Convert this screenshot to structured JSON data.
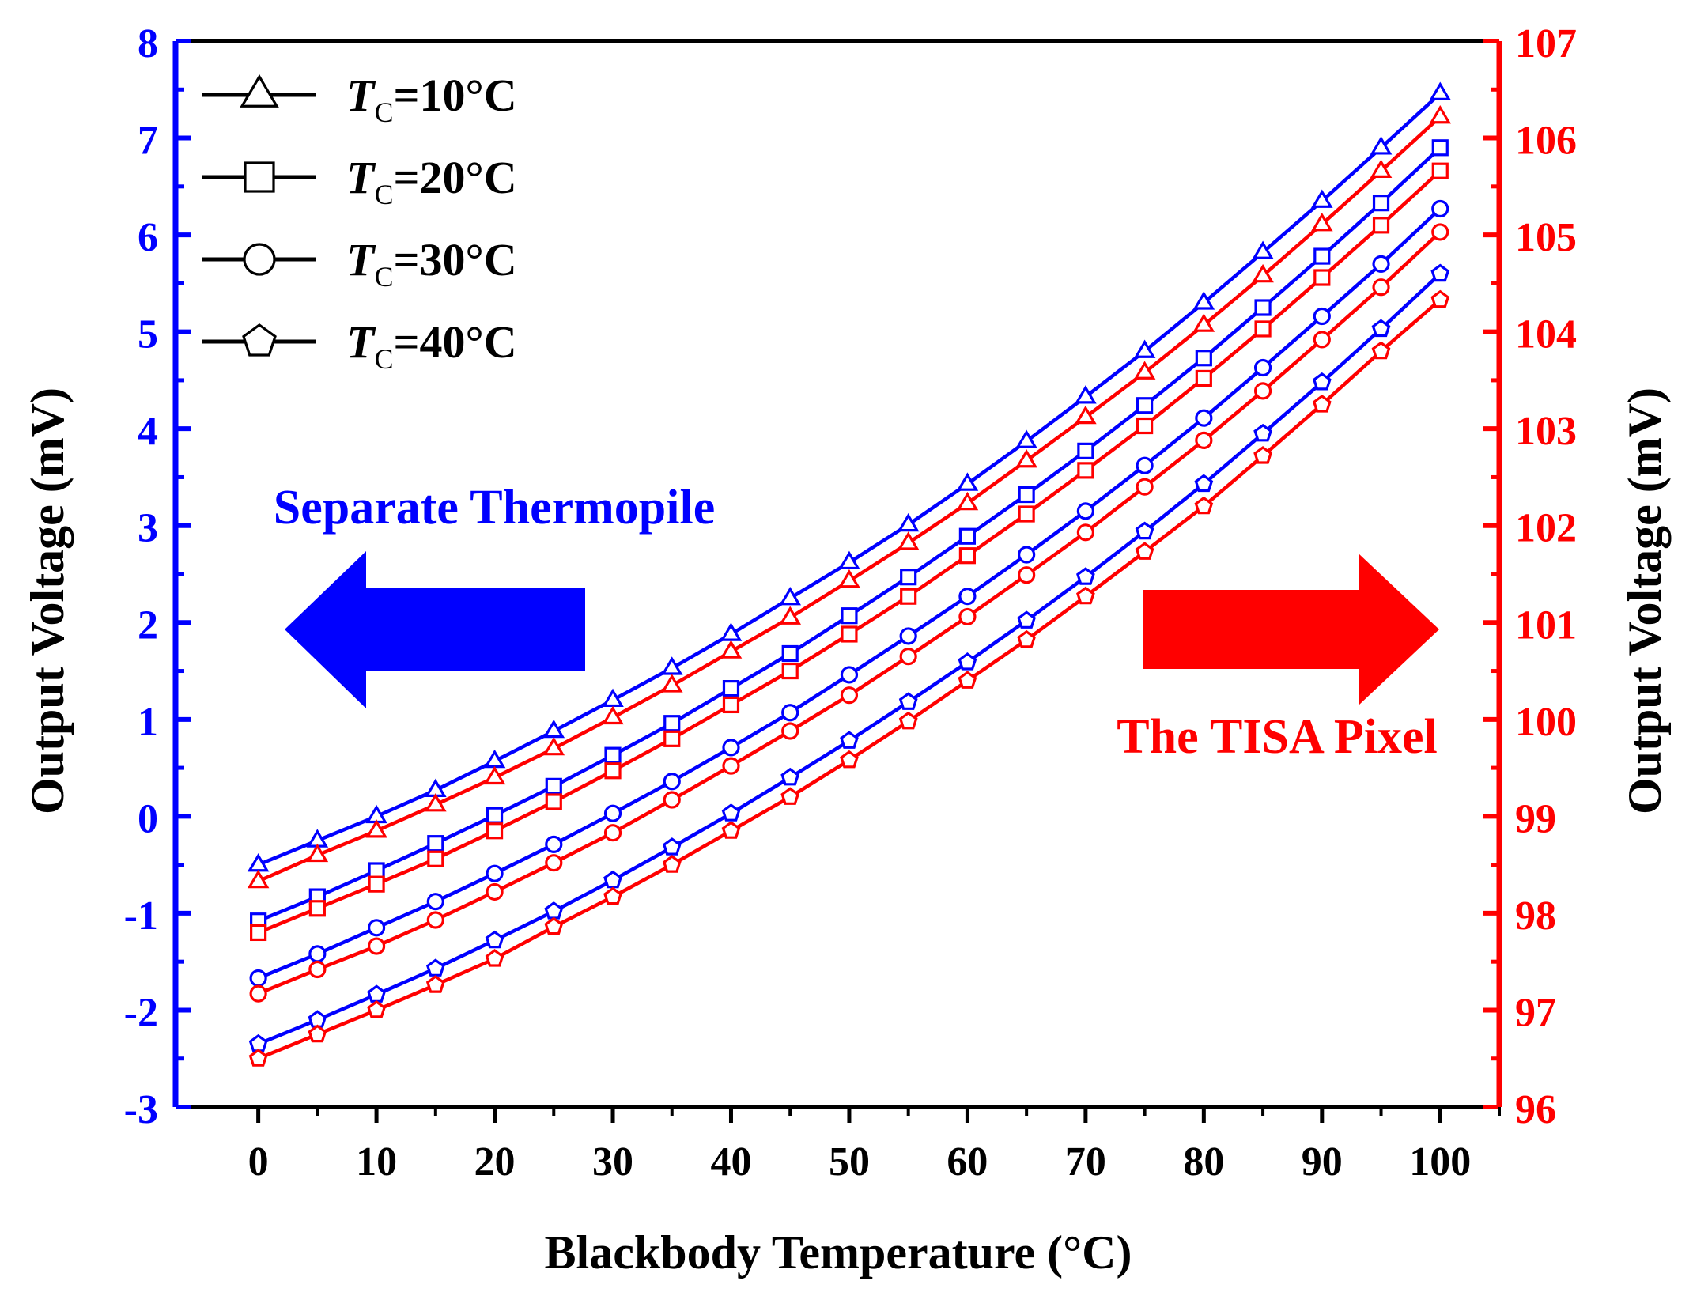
{
  "chart_data": {
    "type": "line",
    "xlabel": "Blackbody Temperature (°C)",
    "ylabel_left": "Output Voltage (mV)",
    "ylabel_right": "Output Voltage (mV)",
    "x": [
      0,
      5,
      10,
      15,
      20,
      25,
      30,
      35,
      40,
      45,
      50,
      55,
      60,
      65,
      70,
      75,
      80,
      85,
      90,
      95,
      100
    ],
    "xticks": [
      0,
      10,
      20,
      30,
      40,
      50,
      60,
      70,
      80,
      90,
      100
    ],
    "xlim": [
      -7,
      105
    ],
    "ylim_left": [
      -3,
      8
    ],
    "yticks_left": [
      -3,
      -2,
      -1,
      0,
      1,
      2,
      3,
      4,
      5,
      6,
      7,
      8
    ],
    "ylim_right": [
      96,
      107
    ],
    "yticks_right": [
      96,
      97,
      98,
      99,
      100,
      101,
      102,
      103,
      104,
      105,
      106,
      107
    ],
    "colors": {
      "left": "#0000ff",
      "right": "#ff0000",
      "frame": "#000000"
    },
    "legend": [
      {
        "italic": "T",
        "sub": "C",
        "text": "=10°C",
        "marker": "triangle"
      },
      {
        "italic": "T",
        "sub": "C",
        "text": "=20°C",
        "marker": "square"
      },
      {
        "italic": "T",
        "sub": "C",
        "text": "=30°C",
        "marker": "circle"
      },
      {
        "italic": "T",
        "sub": "C",
        "text": "=40°C",
        "marker": "pentagon"
      }
    ],
    "series_left": [
      {
        "name": "TC=10°C Separate Thermopile",
        "marker": "triangle",
        "values": [
          -0.5,
          -0.25,
          0.0,
          0.27,
          0.57,
          0.88,
          1.2,
          1.53,
          1.88,
          2.25,
          2.62,
          3.01,
          3.43,
          3.87,
          4.33,
          4.8,
          5.3,
          5.82,
          6.35,
          6.9,
          7.46
        ]
      },
      {
        "name": "TC=20°C Separate Thermopile",
        "marker": "square",
        "values": [
          -1.08,
          -0.83,
          -0.56,
          -0.28,
          0.01,
          0.31,
          0.63,
          0.96,
          1.32,
          1.68,
          2.07,
          2.47,
          2.89,
          3.32,
          3.77,
          4.24,
          4.73,
          5.25,
          5.78,
          6.33,
          6.9
        ]
      },
      {
        "name": "TC=30°C Separate Thermopile",
        "marker": "circle",
        "values": [
          -1.67,
          -1.42,
          -1.15,
          -0.88,
          -0.59,
          -0.29,
          0.03,
          0.36,
          0.71,
          1.07,
          1.46,
          1.86,
          2.27,
          2.7,
          3.15,
          3.62,
          4.11,
          4.63,
          5.16,
          5.7,
          6.27
        ]
      },
      {
        "name": "TC=40°C Separate Thermopile",
        "marker": "pentagon",
        "values": [
          -2.35,
          -2.1,
          -1.84,
          -1.57,
          -1.28,
          -0.98,
          -0.66,
          -0.32,
          0.03,
          0.4,
          0.78,
          1.18,
          1.59,
          2.02,
          2.47,
          2.94,
          3.43,
          3.95,
          4.48,
          5.03,
          5.6
        ]
      }
    ],
    "series_right": [
      {
        "name": "TC=10°C The TISA Pixel",
        "marker": "triangle",
        "values": [
          98.33,
          98.6,
          98.85,
          99.12,
          99.4,
          99.7,
          100.02,
          100.35,
          100.7,
          101.05,
          101.43,
          101.82,
          102.23,
          102.67,
          103.12,
          103.58,
          104.07,
          104.58,
          105.11,
          105.66,
          106.22
        ]
      },
      {
        "name": "TC=20°C The TISA Pixel",
        "marker": "square",
        "values": [
          97.8,
          98.05,
          98.3,
          98.56,
          98.85,
          99.15,
          99.47,
          99.8,
          100.15,
          100.5,
          100.88,
          101.27,
          101.69,
          102.12,
          102.57,
          103.03,
          103.52,
          104.03,
          104.56,
          105.1,
          105.66
        ]
      },
      {
        "name": "TC=30°C The TISA Pixel",
        "marker": "circle",
        "values": [
          97.17,
          97.42,
          97.66,
          97.93,
          98.22,
          98.52,
          98.83,
          99.17,
          99.52,
          99.88,
          100.25,
          100.65,
          101.06,
          101.49,
          101.93,
          102.4,
          102.88,
          103.39,
          103.92,
          104.46,
          105.03
        ]
      },
      {
        "name": "TC=40°C The TISA Pixel",
        "marker": "pentagon",
        "values": [
          96.5,
          96.75,
          97.0,
          97.26,
          97.53,
          97.86,
          98.17,
          98.5,
          98.85,
          99.2,
          99.58,
          99.98,
          100.4,
          100.82,
          101.27,
          101.73,
          102.2,
          102.72,
          103.25,
          103.8,
          104.33
        ]
      }
    ],
    "annotations": {
      "left_label": "Separate Thermopile",
      "right_label": "The TISA Pixel"
    }
  }
}
